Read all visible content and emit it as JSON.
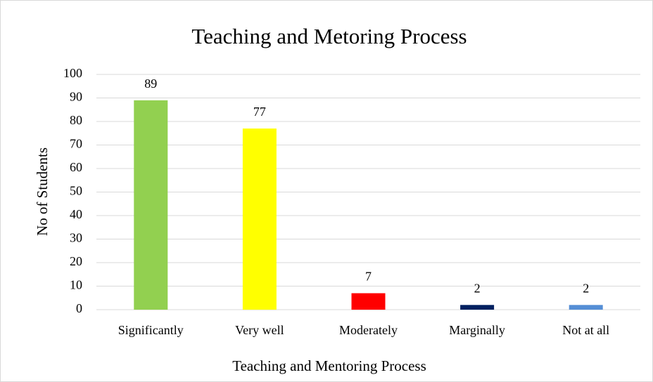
{
  "chart_data": {
    "type": "bar",
    "title": "Teaching and Metoring Process",
    "x_label": "Teaching and Mentoring Process",
    "y_label": "No of Students",
    "categories": [
      "Significantly",
      "Very well",
      "Moderately",
      "Marginally",
      "Not at all"
    ],
    "values": [
      89,
      77,
      7,
      2,
      2
    ],
    "colors": [
      "#92d050",
      "#ffff00",
      "#ff0000",
      "#002060",
      "#558ed5"
    ],
    "ylim": [
      0,
      100
    ],
    "yticks": [
      0,
      10,
      20,
      30,
      40,
      50,
      60,
      70,
      80,
      90,
      100
    ],
    "grid": true,
    "data_labels": true
  }
}
